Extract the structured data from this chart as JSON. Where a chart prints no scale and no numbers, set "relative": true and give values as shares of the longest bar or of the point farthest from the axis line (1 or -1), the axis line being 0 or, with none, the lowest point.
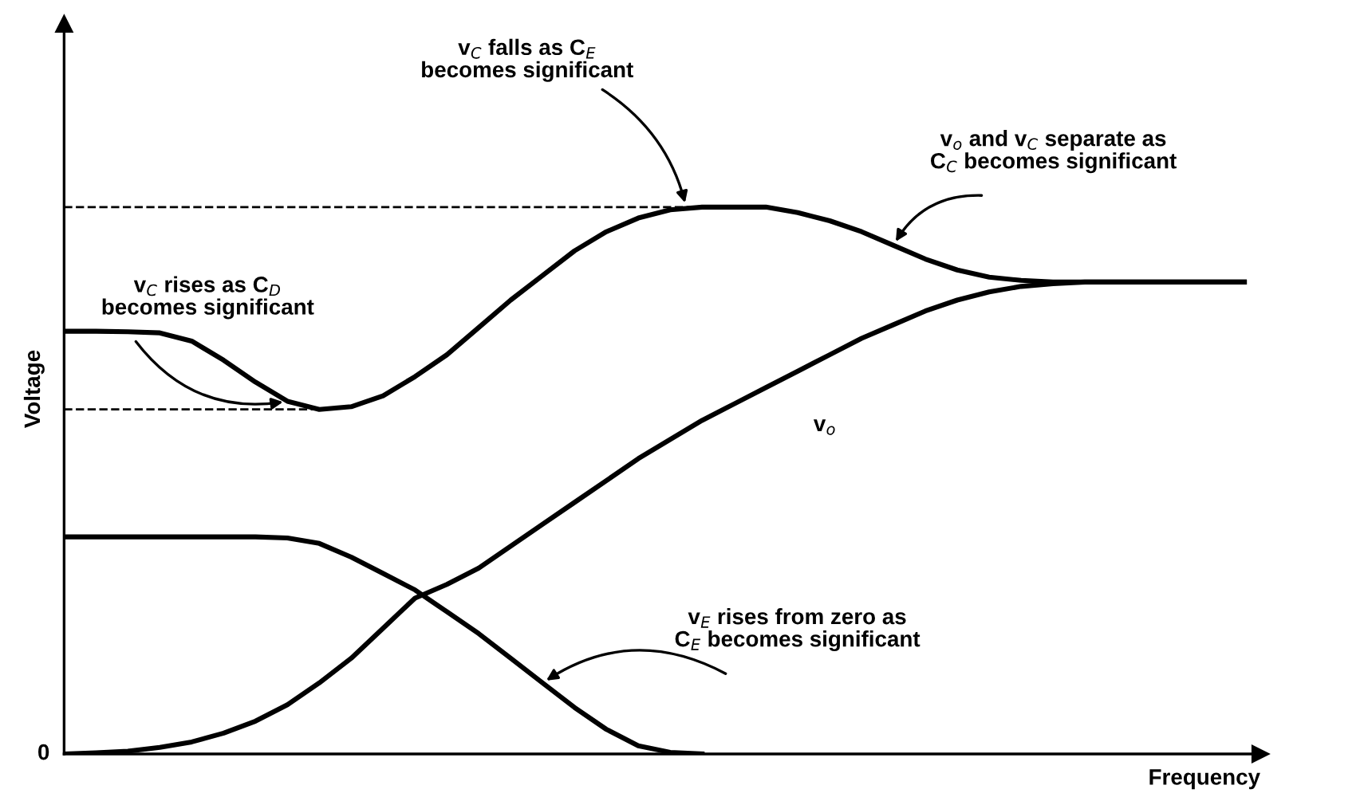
{
  "chart_data": {
    "type": "line",
    "relative": true,
    "xlabel": "Frequency",
    "ylabel": "Voltage",
    "categories": [
      null,
      null,
      null,
      null,
      null,
      null,
      null,
      null,
      null,
      null,
      null,
      null,
      null,
      null,
      null,
      null,
      null,
      null,
      null,
      null,
      null,
      null,
      null,
      null,
      null,
      null,
      null,
      null,
      null,
      null,
      null,
      null,
      null,
      null,
      null,
      null,
      null,
      null
    ],
    "series": [
      {
        "color": "#000000",
        "values": [
          0.773,
          0.773,
          0.772,
          0.77,
          0.755,
          0.72,
          0.68,
          0.645,
          0.63,
          0.635,
          0.655,
          0.69,
          0.73,
          0.78,
          0.83,
          0.875,
          0.92,
          0.955,
          0.98,
          0.995,
          1.0,
          1.0,
          1.0,
          0.99,
          0.975,
          0.955,
          0.93,
          0.905,
          0.885,
          0.872,
          0.866,
          0.863,
          0.863,
          0.863,
          0.863,
          0.863,
          0.863,
          0.863
        ]
      },
      {
        "color": "#000000",
        "values": [
          0,
          0.002,
          0.005,
          0.012,
          0.022,
          0.038,
          0.06,
          0.09,
          0.13,
          0.175,
          0.23,
          0.285,
          0.31,
          0.34,
          0.38,
          0.42,
          0.46,
          0.5,
          0.54,
          0.575,
          0.61,
          0.64,
          0.67,
          0.7,
          0.73,
          0.76,
          0.785,
          0.81,
          0.83,
          0.845,
          0.855,
          0.86,
          0.863,
          0.863,
          0.863,
          0.863,
          0.863,
          0.863
        ]
      },
      {
        "color": "#000000",
        "values": [
          0.397,
          0.397,
          0.397,
          0.397,
          0.397,
          0.397,
          0.397,
          0.395,
          0.385,
          0.36,
          0.33,
          0.3,
          0.26,
          0.22,
          0.175,
          0.13,
          0.085,
          0.045,
          0.015,
          0.003,
          0,
          null,
          null,
          null,
          null,
          null,
          null,
          null,
          null,
          null,
          null,
          null,
          null,
          null,
          null,
          null,
          null,
          null
        ]
      }
    ],
    "ref_lines": [
      {
        "axis": "y",
        "value": 1.0,
        "line_style": "dashed",
        "color": "#000000"
      },
      {
        "axis": "y",
        "value": 0.63,
        "line_style": "dashed",
        "color": "#000000"
      }
    ],
    "annotations": [
      "v$_{C}$ falls as C$_{E}$\nbecomes significant",
      "v$_{o}$ and v$_{C}$ separate as\nC$_{C}$ becomes significant",
      "v$_{C}$ rises as C$_{D}$\nbecomes significant",
      "v$_{o}$",
      "v$_{E}$ rises from zero as\nC$_{E}$ becomes significant",
      "0"
    ],
    "marker": "none",
    "line_style": "solid"
  }
}
